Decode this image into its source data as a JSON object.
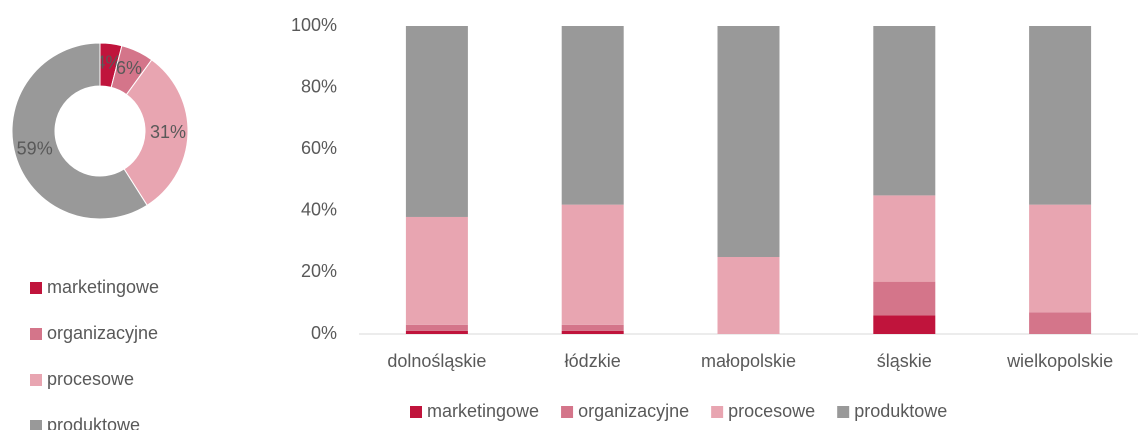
{
  "chart_data": [
    {
      "type": "donut",
      "categories": [
        "marketingowe",
        "organizacyjne",
        "procesowe",
        "produktowe"
      ],
      "values": [
        4,
        6,
        31,
        59
      ],
      "value_labels": [
        "4%",
        "6%",
        "31%",
        "59%"
      ],
      "colors": [
        "#c0143c",
        "#d4758a",
        "#e8a5b1",
        "#999999"
      ],
      "legend": "bottom"
    },
    {
      "type": "stacked_bar",
      "categories": [
        "dolnośląskie",
        "łódzkie",
        "małopolskie",
        "śląskie",
        "wielkopolskie"
      ],
      "series": [
        {
          "name": "marketingowe",
          "color": "#c0143c",
          "values": [
            1,
            1,
            0,
            6,
            0
          ]
        },
        {
          "name": "organizacyjne",
          "color": "#d4758a",
          "values": [
            2,
            2,
            0,
            11,
            7
          ]
        },
        {
          "name": "procesowe",
          "color": "#e8a5b1",
          "values": [
            35,
            39,
            25,
            28,
            35
          ]
        },
        {
          "name": "produktowe",
          "color": "#999999",
          "values": [
            62,
            58,
            75,
            55,
            58
          ]
        }
      ],
      "ylim": [
        0,
        100
      ],
      "yticks": [
        {
          "value": 0,
          "label": "0%"
        },
        {
          "value": 20,
          "label": "20%"
        },
        {
          "value": 40,
          "label": "40%"
        },
        {
          "value": 60,
          "label": "60%"
        },
        {
          "value": 80,
          "label": "80%"
        },
        {
          "value": 100,
          "label": "100%"
        }
      ],
      "legend": "bottom"
    }
  ]
}
